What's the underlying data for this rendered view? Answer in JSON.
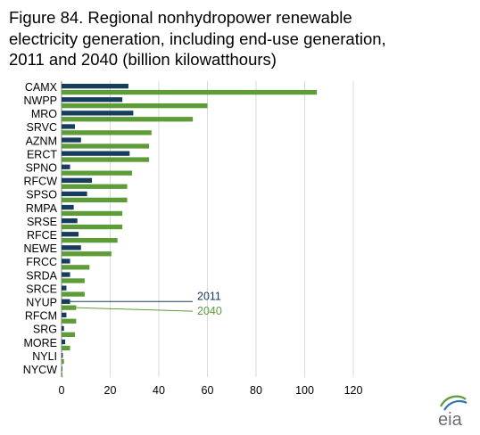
{
  "title_lines": [
    "Figure 84. Regional nonhydropower renewable",
    "electricity generation, including end-use generation,",
    "2011 and 2040 (billion kilowatthours)"
  ],
  "logo_text": "eia",
  "colors": {
    "series_2011": "#163e5c",
    "series_2040": "#5e9c38",
    "grid": "#d9d9d9",
    "axis": "#7f7f7f"
  },
  "chart_data": {
    "type": "bar",
    "orientation": "horizontal",
    "title": "Figure 84. Regional nonhydropower renewable electricity generation, including end-use generation, 2011 and 2040 (billion kilowatthours)",
    "categories": [
      "CAMX",
      "NWPP",
      "MRO",
      "SRVC",
      "AZNM",
      "ERCT",
      "SPNO",
      "RFCW",
      "SPSO",
      "RMPA",
      "SRSE",
      "RFCE",
      "NEWE",
      "FRCC",
      "SRDA",
      "SRCE",
      "NYUP",
      "RFCM",
      "SRG",
      "MORE",
      "NYLI",
      "NYCW"
    ],
    "series": [
      {
        "name": "2011",
        "values": [
          27.5,
          25,
          29.5,
          5.5,
          8,
          28,
          3.5,
          12.5,
          10.5,
          5,
          6.5,
          7,
          8,
          3.5,
          3.5,
          2,
          3.5,
          2,
          1,
          1.5,
          0.5,
          0.2
        ]
      },
      {
        "name": "2040",
        "values": [
          105,
          60,
          54,
          37,
          36,
          36,
          29,
          27,
          27,
          25,
          25,
          23,
          20.5,
          11.5,
          9.5,
          9.5,
          6,
          6,
          5.5,
          3.5,
          1,
          0.4
        ]
      }
    ],
    "xlim": [
      0,
      120
    ],
    "xticks": [
      0,
      20,
      40,
      60,
      80,
      100,
      120
    ],
    "grid": true,
    "legend": "inline labels with leader lines at NYUP bars"
  }
}
